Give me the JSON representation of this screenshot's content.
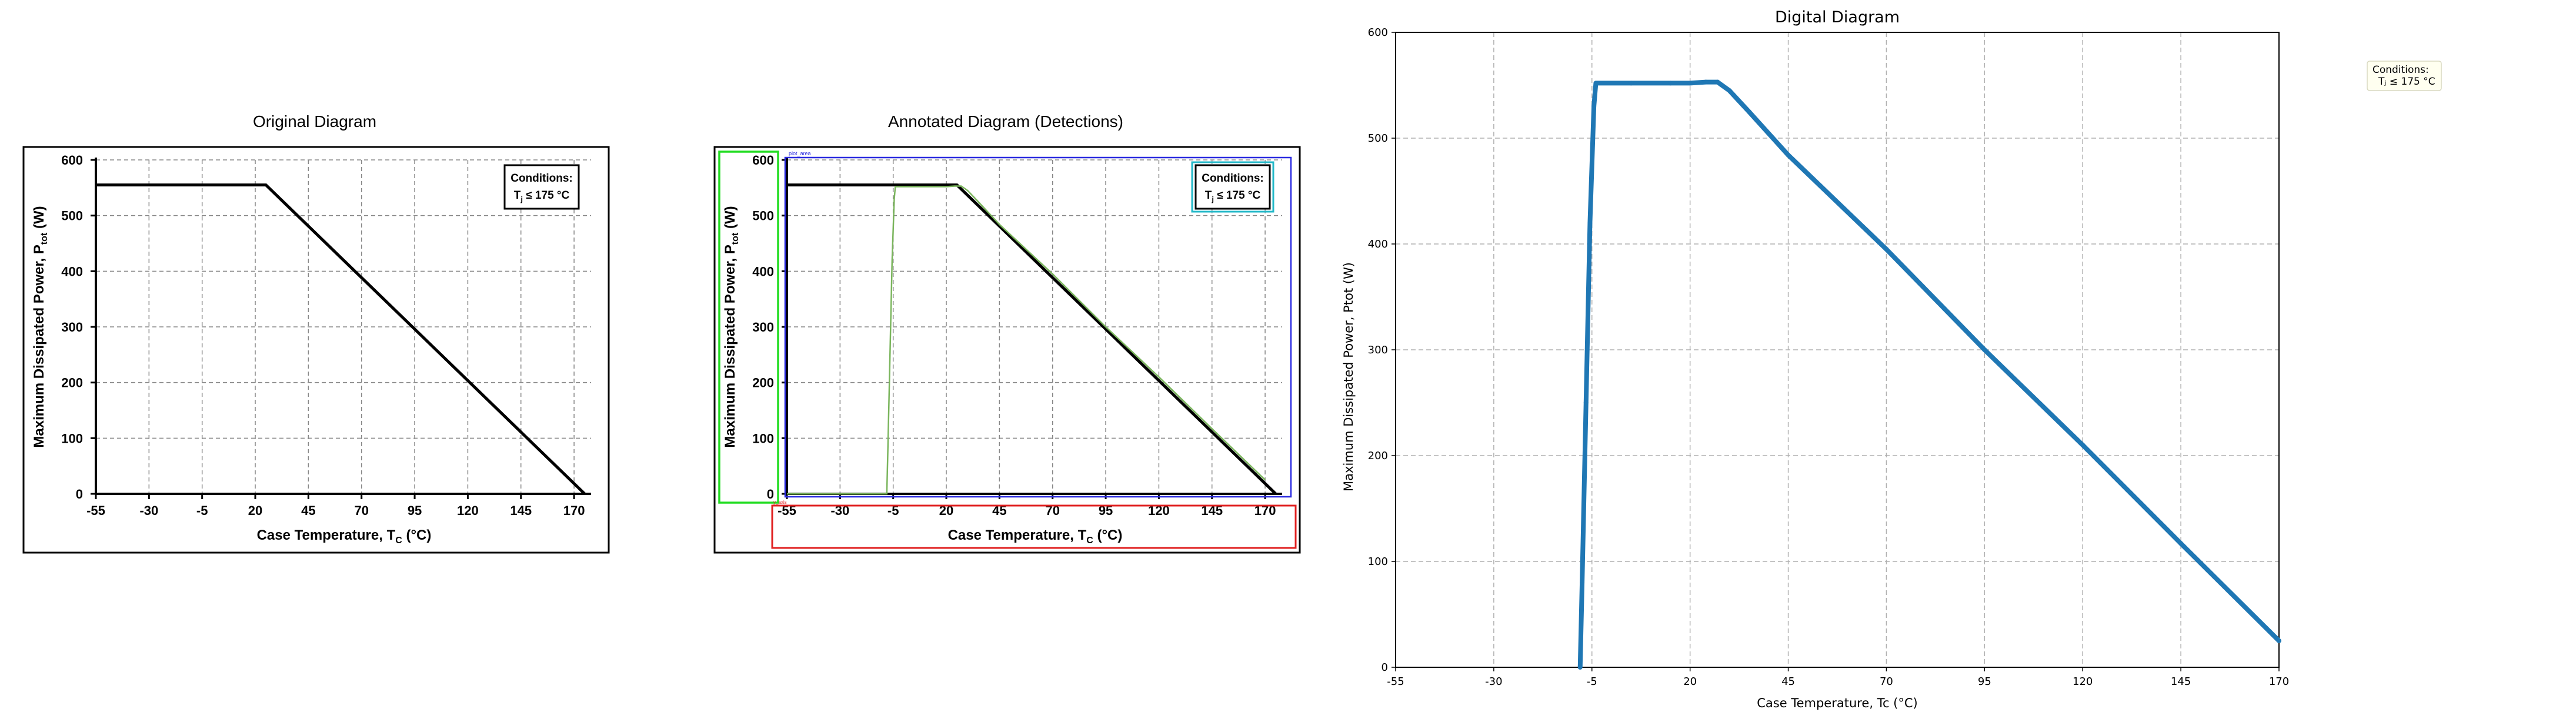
{
  "panels": {
    "original_title": "Original Diagram",
    "annotated_title": "Annotated Diagram (Detections)",
    "digital_title": "Digital Diagram"
  },
  "original": {
    "ylabel_main": "Maximum Dissipated Power, P",
    "ylabel_sub": "tot",
    "ylabel_unit": " (W)",
    "xlabel_main": "Case Temperature, T",
    "xlabel_sub": "C",
    "xlabel_unit": " (°C)",
    "conditions_title": "Conditions:",
    "conditions_line": "T",
    "conditions_sub": "j",
    "conditions_rest": " ≤ 175 °C"
  },
  "annotated": {
    "plot_label": "plot_area",
    "tiny_label": "y_axis"
  },
  "digital": {
    "legend_line1": "Conditions:",
    "legend_line2": "Tⱼ ≤ 175 °C"
  },
  "chart_data": [
    {
      "type": "line",
      "name": "original",
      "title": "Original Diagram",
      "xlabel": "Case Temperature, Tc (°C)",
      "ylabel": "Maximum Dissipated Power, Ptot (W)",
      "xticks": [
        -55,
        -30,
        -5,
        20,
        45,
        70,
        95,
        120,
        145,
        170
      ],
      "yticks": [
        0,
        100,
        200,
        300,
        400,
        500,
        600
      ],
      "xlim": [
        -55,
        178
      ],
      "ylim": [
        0,
        600
      ],
      "grid": true,
      "series": [
        {
          "x": [
            -55,
            25,
            175
          ],
          "y": [
            555,
            555,
            0
          ]
        }
      ],
      "annotation": "Conditions: Tj ≤ 175 °C"
    },
    {
      "type": "line",
      "name": "digital",
      "title": "Digital Diagram",
      "xlabel": "Case Temperature, Tc (°C)",
      "ylabel": "Maximum Dissipated Power, Ptot (W)",
      "xticks": [
        -55,
        -30,
        -5,
        20,
        45,
        70,
        95,
        120,
        145,
        170
      ],
      "yticks": [
        0,
        100,
        200,
        300,
        400,
        500,
        600
      ],
      "xlim": [
        -55,
        170
      ],
      "ylim": [
        0,
        600
      ],
      "grid": true,
      "legend": "top-right (outside)",
      "color": "#1f77b4",
      "series": [
        {
          "x": [
            -8,
            -7.5,
            -6.5,
            -5.5,
            -4.5,
            -4,
            5,
            15,
            20,
            24,
            27,
            30,
            35,
            45,
            70,
            95,
            120,
            145,
            170
          ],
          "y": [
            0,
            80,
            250,
            420,
            530,
            552,
            552,
            552,
            552,
            553,
            553,
            545,
            525,
            484,
            395,
            300,
            210,
            117,
            25
          ]
        }
      ]
    }
  ]
}
